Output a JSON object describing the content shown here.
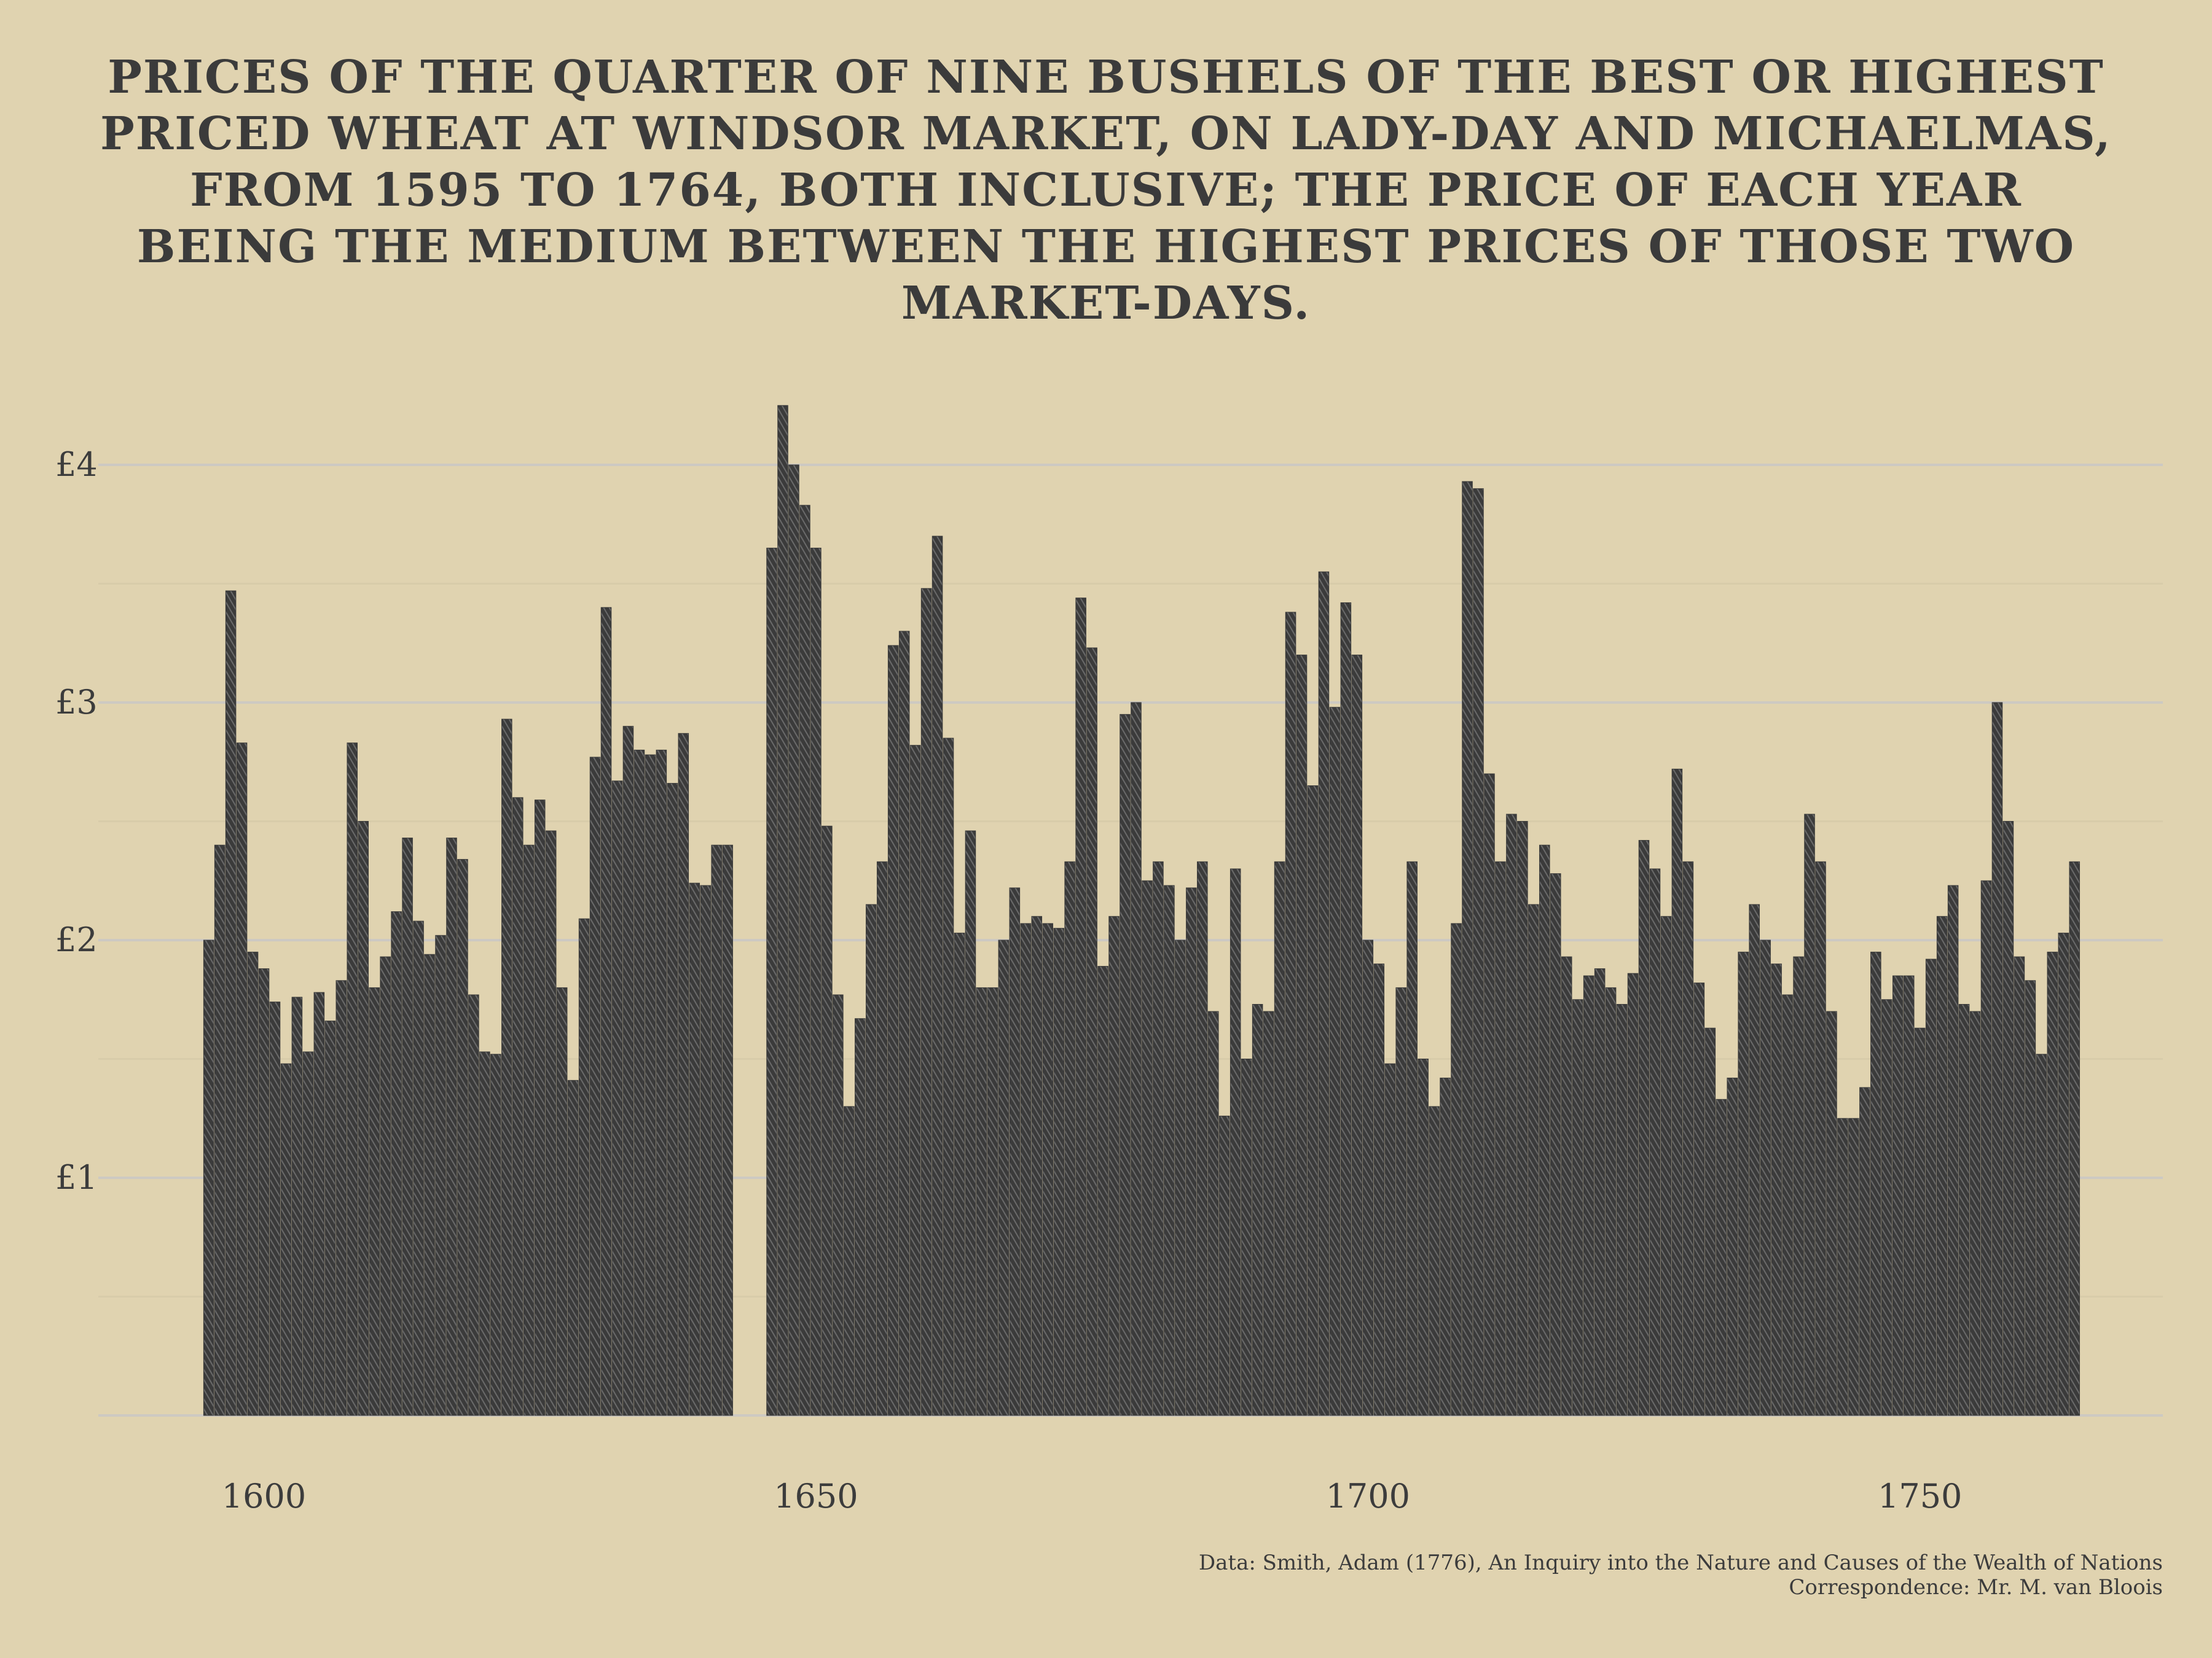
{
  "chart_data": {
    "type": "bar",
    "title_lines": [
      "PRICES OF THE QUARTER OF NINE BUSHELS OF THE BEST OR HIGHEST",
      "PRICED WHEAT AT WINDSOR MARKET, ON LADY-DAY AND MICHAELMAS,",
      "FROM 1595 TO 1764, BOTH INCLUSIVE; THE PRICE OF EACH YEAR",
      "BEING THE MEDIUM BETWEEN THE HIGHEST PRICES OF THOSE TWO",
      "MARKET-DAYS."
    ],
    "xlabel": "",
    "ylabel": "",
    "xlim": [
      1585,
      1772
    ],
    "ylim": [
      0,
      4.3
    ],
    "x_ticks": [
      1600,
      1650,
      1700,
      1750
    ],
    "y_ticks": [
      {
        "value": 1,
        "label": "£1"
      },
      {
        "value": 2,
        "label": "£2"
      },
      {
        "value": 3,
        "label": "£3"
      },
      {
        "value": 4,
        "label": "£4"
      }
    ],
    "minor_gridlines": [
      0.5,
      1.5,
      2.5,
      3.5
    ],
    "grid": true,
    "bar_color": "#3a3a3a",
    "grid_color": "#cfcac0",
    "series": [
      {
        "x": [
          1595,
          1596,
          1597,
          1598,
          1599,
          1600,
          1601,
          1602,
          1603,
          1604,
          1605,
          1606,
          1607,
          1608,
          1609,
          1610,
          1611,
          1612,
          1613,
          1614,
          1615,
          1616,
          1617,
          1618,
          1619,
          1620,
          1621,
          1622,
          1623,
          1624,
          1625,
          1626,
          1627,
          1628,
          1629,
          1630,
          1631,
          1632,
          1633,
          1634,
          1635,
          1636,
          1637,
          1638,
          1639,
          1640,
          1641,
          1642,
          1646,
          1647,
          1648,
          1649,
          1650,
          1651,
          1652,
          1653,
          1654,
          1655,
          1656,
          1657,
          1658,
          1659,
          1660,
          1661,
          1662,
          1663,
          1664,
          1665,
          1666,
          1667,
          1668,
          1669,
          1670,
          1671,
          1672,
          1673,
          1674,
          1675,
          1676,
          1677,
          1678,
          1679,
          1680,
          1681,
          1682,
          1683,
          1684,
          1685,
          1686,
          1687,
          1688,
          1689,
          1690,
          1691,
          1692,
          1693,
          1694,
          1695,
          1696,
          1697,
          1698,
          1699,
          1700,
          1701,
          1702,
          1703,
          1704,
          1705,
          1706,
          1707,
          1708,
          1709,
          1710,
          1711,
          1712,
          1713,
          1714,
          1715,
          1716,
          1717,
          1718,
          1719,
          1720,
          1721,
          1722,
          1723,
          1724,
          1725,
          1726,
          1727,
          1728,
          1729,
          1730,
          1731,
          1732,
          1733,
          1734,
          1735,
          1736,
          1737,
          1738,
          1739,
          1740,
          1741,
          1742,
          1743,
          1744,
          1745,
          1746,
          1747,
          1748,
          1749,
          1750,
          1751,
          1752,
          1753,
          1754,
          1755,
          1756,
          1757,
          1758,
          1759,
          1760,
          1761,
          1762,
          1763,
          1764
        ],
        "values": [
          2.0,
          2.4,
          3.47,
          2.83,
          1.95,
          1.88,
          1.74,
          1.48,
          1.76,
          1.53,
          1.78,
          1.66,
          1.83,
          2.83,
          2.5,
          1.8,
          1.93,
          2.12,
          2.43,
          2.08,
          1.94,
          2.02,
          2.43,
          2.34,
          1.77,
          1.53,
          1.52,
          2.93,
          2.6,
          2.4,
          2.59,
          2.46,
          1.8,
          1.41,
          2.09,
          2.77,
          3.4,
          2.67,
          2.9,
          2.8,
          2.78,
          2.8,
          2.66,
          2.87,
          2.24,
          2.23,
          2.4,
          2.4,
          3.65,
          4.25,
          4.0,
          3.83,
          3.65,
          2.48,
          1.77,
          1.3,
          1.67,
          2.15,
          2.33,
          3.24,
          3.3,
          2.82,
          3.48,
          3.7,
          2.85,
          2.03,
          2.46,
          1.8,
          1.8,
          2.0,
          2.22,
          2.07,
          2.1,
          2.07,
          2.05,
          2.33,
          3.44,
          3.23,
          1.89,
          2.1,
          2.95,
          3.0,
          2.25,
          2.33,
          2.23,
          2.0,
          2.22,
          2.33,
          1.7,
          1.26,
          2.3,
          1.5,
          1.73,
          1.7,
          2.33,
          3.38,
          3.2,
          2.65,
          3.55,
          2.98,
          3.42,
          3.2,
          2.0,
          1.9,
          1.48,
          1.8,
          2.33,
          1.5,
          1.3,
          1.42,
          2.07,
          3.93,
          3.9,
          2.7,
          2.33,
          2.53,
          2.5,
          2.15,
          2.4,
          2.28,
          1.93,
          1.75,
          1.85,
          1.88,
          1.8,
          1.73,
          1.86,
          2.42,
          2.3,
          2.1,
          2.72,
          2.33,
          1.82,
          1.63,
          1.33,
          1.42,
          1.95,
          2.15,
          2.0,
          1.9,
          1.77,
          1.93,
          2.53,
          2.33,
          1.7,
          1.25,
          1.25,
          1.38,
          1.95,
          1.75,
          1.85,
          1.85,
          1.63,
          1.92,
          2.1,
          2.23,
          1.73,
          1.7,
          2.25,
          3.0,
          2.5,
          1.93,
          1.83,
          1.52,
          1.95,
          2.03,
          2.33
        ]
      }
    ]
  },
  "caption": {
    "source": "Data: Smith, Adam (1776), An Inquiry into the Nature and Causes of the Wealth of Nations",
    "credit": "Correspondence: Mr. M. van Bloois"
  }
}
